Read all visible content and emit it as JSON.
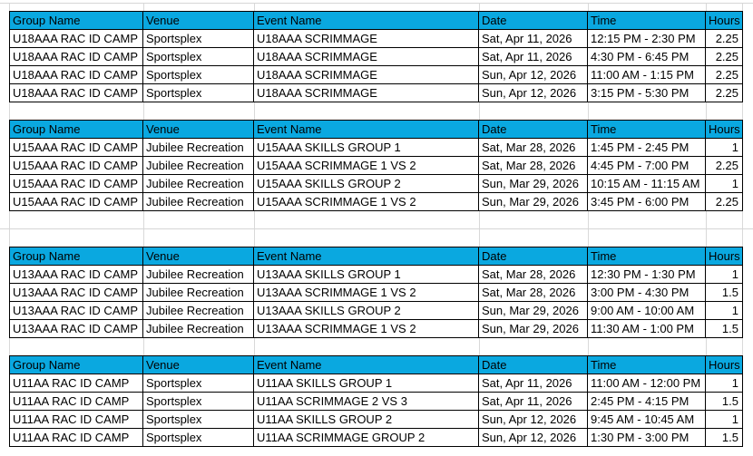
{
  "app": {
    "kind": "spreadsheet-schedule-view",
    "colors": {
      "header_fill": "#0aa8e0",
      "header_text": "#000000",
      "cell_border": "#000000",
      "gridline": "#d9d9d9",
      "copy_marquee": "#1e6e50"
    }
  },
  "columns": [
    "Group Name",
    "Venue",
    "Event Name",
    "Date",
    "Time",
    "Hours"
  ],
  "copy_selection": {
    "table": "u18aaa",
    "row_index": 2,
    "column": "hours",
    "value": "2.25"
  },
  "tables": [
    {
      "id": "u18aaa",
      "rows": [
        {
          "group": "U18AAA RAC ID CAMP",
          "venue": "Sportsplex",
          "event": "U18AAA SCRIMMAGE",
          "date": "Sat, Apr 11, 2026",
          "time": "12:15 PM - 2:30 PM",
          "hours": "2.25"
        },
        {
          "group": "U18AAA RAC ID CAMP",
          "venue": "Sportsplex",
          "event": "U18AAA SCRIMMAGE",
          "date": "Sat, Apr 11, 2026",
          "time": "4:30 PM - 6:45 PM",
          "hours": "2.25"
        },
        {
          "group": "U18AAA RAC ID CAMP",
          "venue": "Sportsplex",
          "event": "U18AAA SCRIMMAGE",
          "date": "Sun, Apr 12, 2026",
          "time": "11:00 AM - 1:15 PM",
          "hours": "2.25",
          "marquee": "hours"
        },
        {
          "group": "U18AAA RAC ID CAMP",
          "venue": "Sportsplex",
          "event": "U18AAA SCRIMMAGE",
          "date": "Sun, Apr 12, 2026",
          "time": "3:15 PM - 5:30 PM",
          "hours": "2.25"
        }
      ]
    },
    {
      "id": "u15aaa",
      "rows": [
        {
          "group": "U15AAA RAC ID CAMP",
          "venue": "Jubilee Recreation",
          "event": "U15AAA SKILLS GROUP 1",
          "date": "Sat, Mar 28, 2026",
          "time": "1:45 PM - 2:45 PM",
          "hours": "1"
        },
        {
          "group": "U15AAA RAC ID CAMP",
          "venue": "Jubilee Recreation",
          "event": "U15AAA SCRIMMAGE 1 VS 2",
          "date": "Sat, Mar 28, 2026",
          "time": "4:45 PM - 7:00 PM",
          "hours": "2.25"
        },
        {
          "group": "U15AAA RAC ID CAMP",
          "venue": "Jubilee Recreation",
          "event": "U15AAA SKILLS GROUP 2",
          "date": "Sun, Mar 29, 2026",
          "time": "10:15 AM - 11:15 AM",
          "hours": "1"
        },
        {
          "group": "U15AAA RAC ID CAMP",
          "venue": "Jubilee Recreation",
          "event": "U15AAA SCRIMMAGE 1 VS 2",
          "date": "Sun, Mar 29, 2026",
          "time": "3:45 PM - 6:00 PM",
          "hours": "2.25"
        }
      ]
    },
    {
      "id": "u13aaa",
      "rows": [
        {
          "group": "U13AAA RAC ID CAMP",
          "venue": "Jubilee Recreation",
          "event": "U13AAA SKILLS GROUP 1",
          "date": "Sat, Mar 28, 2026",
          "time": "12:30 PM - 1:30 PM",
          "hours": "1"
        },
        {
          "group": "U13AAA RAC ID CAMP",
          "venue": "Jubilee Recreation",
          "event": "U13AAA SCRIMMAGE 1 VS 2",
          "date": "Sat, Mar 28, 2026",
          "time": "3:00 PM - 4:30 PM",
          "hours": "1.5"
        },
        {
          "group": "U13AAA RAC ID CAMP",
          "venue": "Jubilee Recreation",
          "event": "U13AAA SKILLS GROUP 2",
          "date": "Sun, Mar 29, 2026",
          "time": "9:00 AM - 10:00 AM",
          "hours": "1"
        },
        {
          "group": "U13AAA RAC ID CAMP",
          "venue": "Jubilee Recreation",
          "event": "U13AAA SCRIMMAGE 1 VS 2",
          "date": "Sun, Mar 29, 2026",
          "time": "11:30 AM - 1:00 PM",
          "hours": "1.5"
        }
      ]
    },
    {
      "id": "u11aa",
      "rows": [
        {
          "group": "U11AA RAC ID CAMP",
          "venue": "Sportsplex",
          "event": "U11AA SKILLS GROUP 1",
          "date": "Sat, Apr 11, 2026",
          "time": "11:00 AM - 12:00 PM",
          "hours": "1"
        },
        {
          "group": "U11AA RAC ID CAMP",
          "venue": "Sportsplex",
          "event": "U11AA SCRIMMAGE 2 VS 3",
          "date": "Sat, Apr 11, 2026",
          "time": "2:45 PM - 4:15 PM",
          "hours": "1.5"
        },
        {
          "group": "U11AA RAC ID CAMP",
          "venue": "Sportsplex",
          "event": "U11AA SKILLS GROUP 2",
          "date": "Sun, Apr 12, 2026",
          "time": "9:45 AM - 10:45 AM",
          "hours": "1"
        },
        {
          "group": "U11AA RAC ID CAMP",
          "venue": "Sportsplex",
          "event": "U11AA SCRIMMAGE GROUP 2",
          "date": "Sun, Apr 12, 2026",
          "time": "1:30 PM - 3:00 PM",
          "hours": "1.5"
        }
      ]
    }
  ]
}
